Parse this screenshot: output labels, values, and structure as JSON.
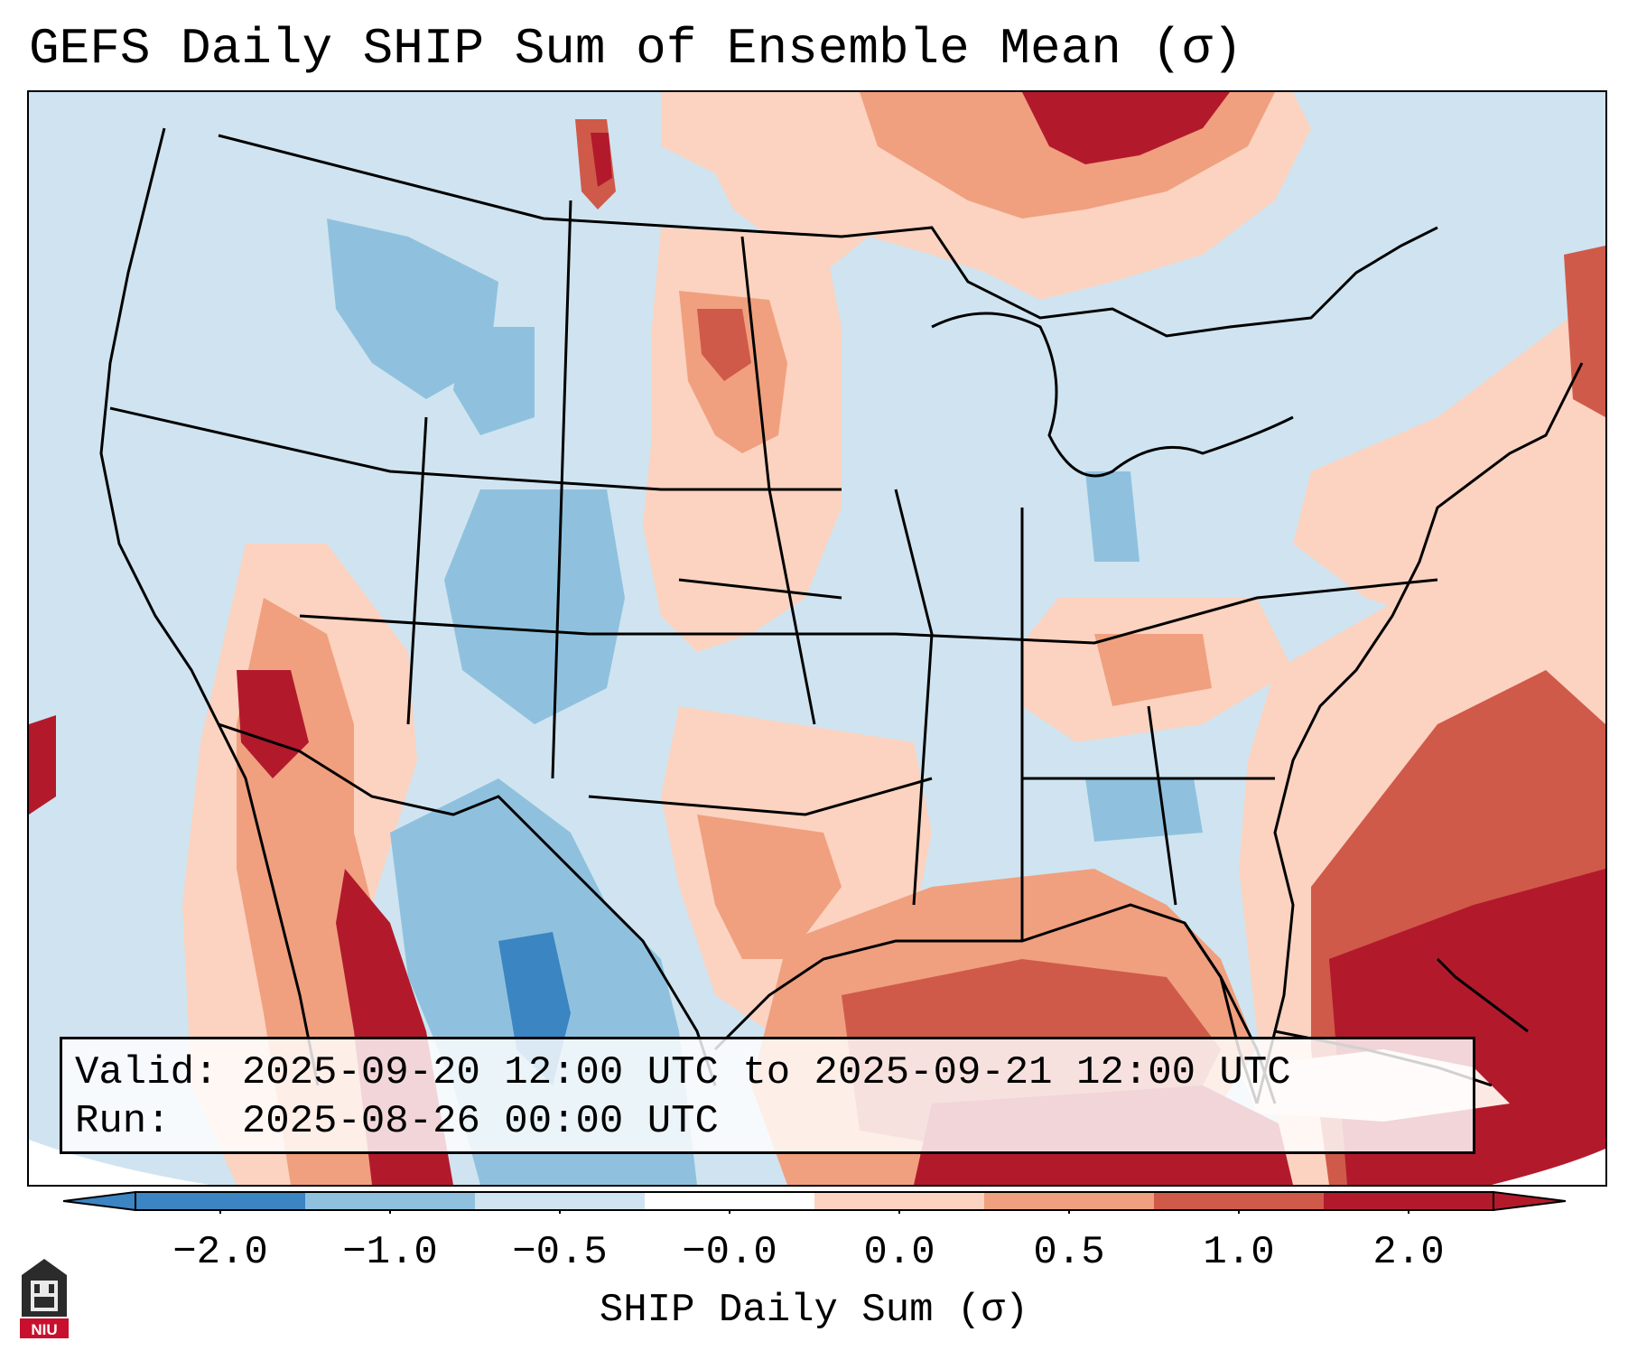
{
  "title": "GEFS Daily SHIP Sum of Ensemble Mean (σ)",
  "info": {
    "valid_label": "Valid:",
    "valid_value": "2025-09-20 12:00 UTC to 2025-09-21 12:00 UTC",
    "run_label": "Run:",
    "run_value": "2025-08-26 00:00 UTC"
  },
  "colorbar": {
    "label": "SHIP Daily Sum (σ)",
    "ticks": [
      "−2.0",
      "−1.0",
      "−0.5",
      "−0.0",
      "0.0",
      "0.5",
      "1.0",
      "2.0"
    ],
    "colors": [
      "#3a85c2",
      "#8fc1de",
      "#cfe4f0",
      "#ffffff",
      "#fbd3c0",
      "#f0a07f",
      "#d05a4a",
      "#b21a2c"
    ]
  },
  "logo_text": "NIU",
  "map": {
    "background_color": "#cfe4f0",
    "anomaly_colors": {
      "strong_negative": "#3a85c2",
      "negative": "#8fc1de",
      "neutral": "#cfe4f0",
      "slight_positive": "#fbd3c0",
      "positive": "#f0a07f",
      "strong_positive": "#d05a4a",
      "extreme_positive": "#b21a2c"
    }
  }
}
